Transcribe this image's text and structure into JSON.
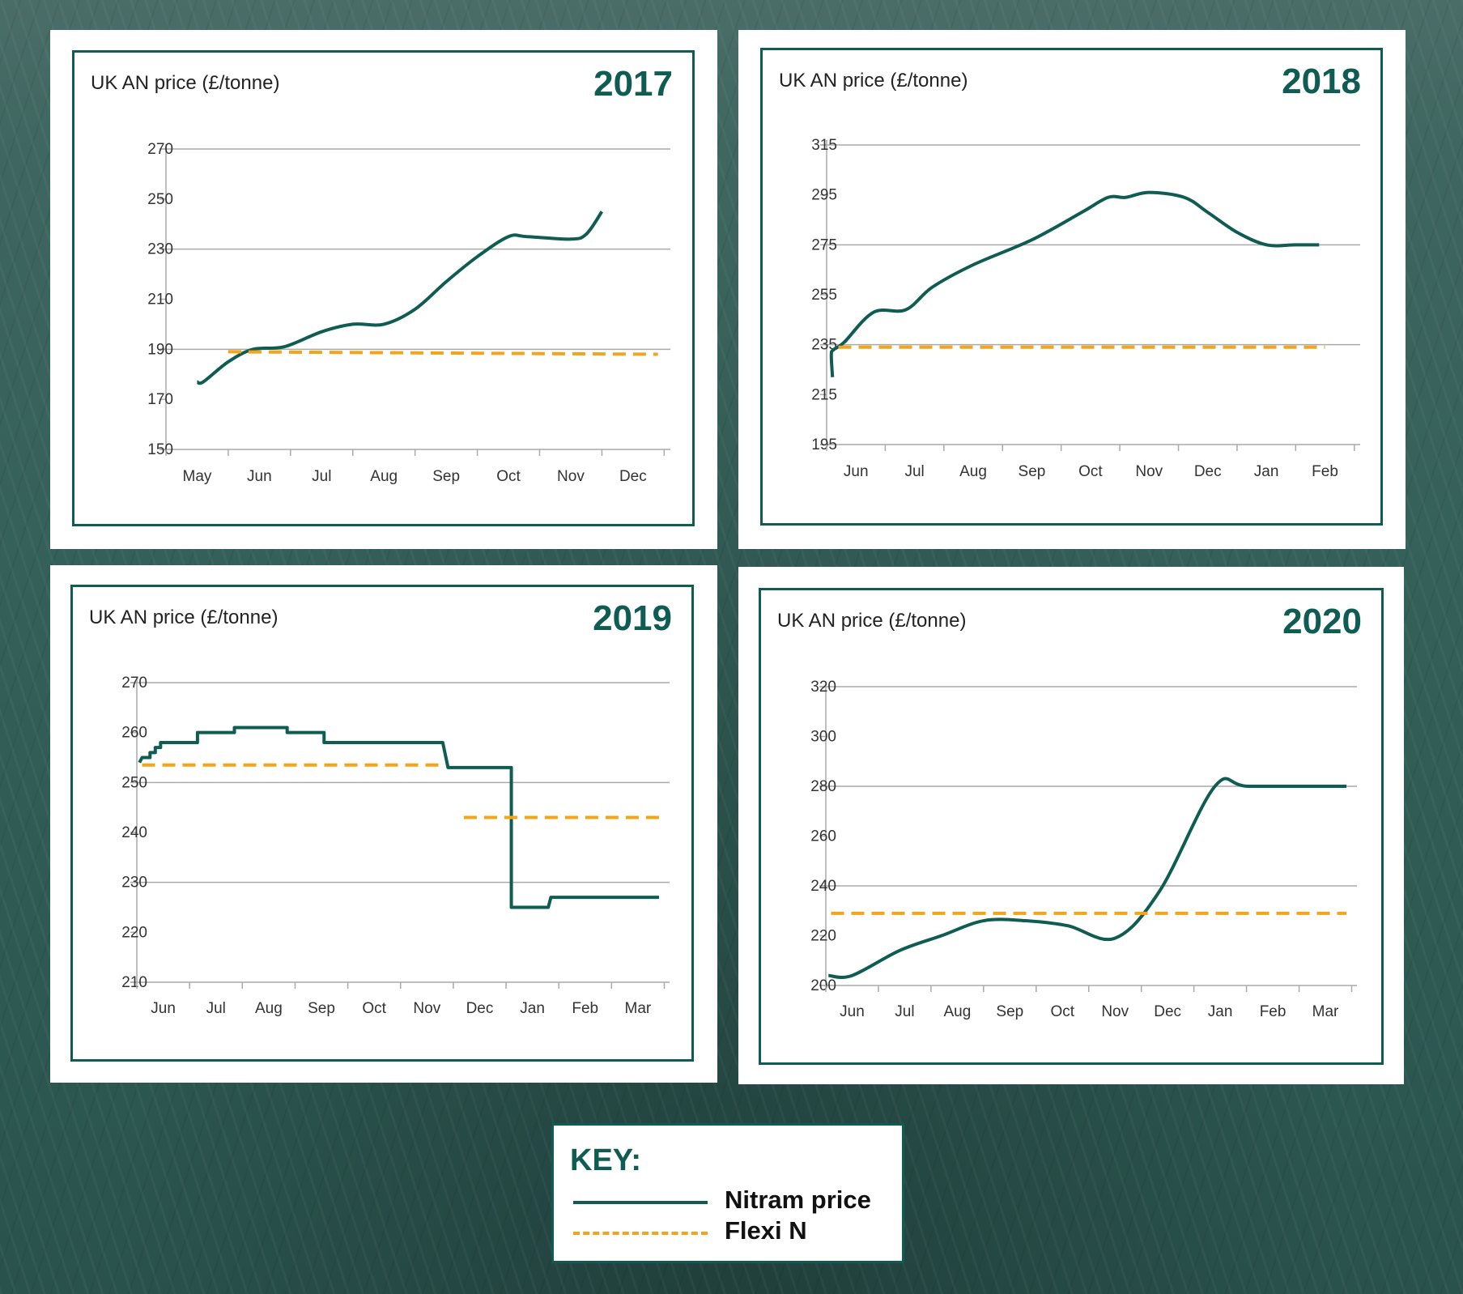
{
  "key": {
    "title": "KEY:",
    "nitram_label": "Nitram price",
    "flexi_label": "Flexi N"
  },
  "colors": {
    "nitram": "#0f5c52",
    "flexi": "#f2a51a",
    "grid": "#aaaaaa",
    "frame": "#0f5c52"
  },
  "chart_data": [
    {
      "type": "line",
      "title": "UK AN price (£/tonne)",
      "year": "2017",
      "categories": [
        "May",
        "Jun",
        "Jul",
        "Aug",
        "Sep",
        "Oct",
        "Nov",
        "Dec"
      ],
      "yticks": [
        270,
        250,
        230,
        210,
        190,
        170,
        150
      ],
      "ylim": [
        150,
        270
      ],
      "grid_values": [
        270,
        230,
        190
      ],
      "series": [
        {
          "name": "Nitram price",
          "style": "solid",
          "x": [
            0,
            0.1,
            0.5,
            0.9,
            1.4,
            2.0,
            2.5,
            3.0,
            3.5,
            4.0,
            4.5,
            5.0,
            5.3,
            6.0,
            6.25,
            6.5
          ],
          "y": [
            177,
            177,
            185,
            190,
            191,
            197,
            200,
            200,
            206,
            217,
            227,
            235,
            235,
            234,
            236,
            245
          ]
        },
        {
          "name": "Flexi N",
          "style": "dashed",
          "x": [
            0.5,
            7.4
          ],
          "y": [
            189,
            188
          ]
        }
      ]
    },
    {
      "type": "line",
      "title": "UK AN price (£/tonne)",
      "year": "2018",
      "categories": [
        "Jun",
        "Jul",
        "Aug",
        "Sep",
        "Oct",
        "Nov",
        "Dec",
        "Jan",
        "Feb"
      ],
      "yticks": [
        315,
        295,
        275,
        255,
        235,
        215,
        195
      ],
      "ylim": [
        195,
        315
      ],
      "grid_values": [
        315,
        275,
        235
      ],
      "series": [
        {
          "name": "Nitram price",
          "style": "solid",
          "x": [
            -0.4,
            -0.42,
            -0.38,
            -0.2,
            0.3,
            0.85,
            1.3,
            2.0,
            3.0,
            3.85,
            4.3,
            4.6,
            5.0,
            5.6,
            6.0,
            6.5,
            7.0,
            7.5,
            7.9
          ],
          "y": [
            222,
            231,
            233,
            236,
            248,
            249,
            258,
            267,
            277,
            288,
            294,
            294,
            296,
            294,
            288,
            280,
            275,
            275,
            275
          ]
        },
        {
          "name": "Flexi N",
          "style": "dashed",
          "x": [
            -0.3,
            8.0
          ],
          "y": [
            234,
            234
          ]
        }
      ]
    },
    {
      "type": "line",
      "title": "UK AN price (£/tonne)",
      "year": "2019",
      "categories": [
        "Jun",
        "Jul",
        "Aug",
        "Sep",
        "Oct",
        "Nov",
        "Dec",
        "Jan",
        "Feb",
        "Mar"
      ],
      "yticks": [
        270,
        260,
        250,
        240,
        230,
        220,
        210
      ],
      "ylim": [
        210,
        270
      ],
      "grid_values": [
        270,
        250,
        230
      ],
      "series": [
        {
          "name": "Nitram price",
          "style": "solid",
          "x": [
            -0.45,
            -0.4,
            -0.25,
            -0.25,
            -0.15,
            -0.15,
            -0.05,
            -0.05,
            0.65,
            0.65,
            1.35,
            1.35,
            2.35,
            2.35,
            3.05,
            3.05,
            5.3,
            5.4,
            6.6,
            6.6,
            7.3,
            7.35,
            9.4
          ],
          "y": [
            254,
            255,
            255,
            256,
            256,
            257,
            257,
            258,
            258,
            260,
            260,
            261,
            261,
            260,
            260,
            258,
            258,
            253,
            253,
            225,
            225,
            227,
            227
          ]
        },
        {
          "name": "Flexi N",
          "style": "dashed",
          "x": [
            -0.4,
            5.3
          ],
          "y": [
            253.5,
            253.5
          ]
        },
        {
          "name": "Flexi N",
          "style": "dashed",
          "x": [
            5.7,
            9.4
          ],
          "y": [
            243,
            243
          ]
        }
      ]
    },
    {
      "type": "line",
      "title": "UK AN price (£/tonne)",
      "year": "2020",
      "categories": [
        "Jun",
        "Jul",
        "Aug",
        "Sep",
        "Oct",
        "Nov",
        "Dec",
        "Jan",
        "Feb",
        "Mar"
      ],
      "yticks": [
        320,
        300,
        280,
        260,
        240,
        220,
        200
      ],
      "ylim": [
        200,
        320
      ],
      "grid_values": [
        320,
        280,
        240
      ],
      "series": [
        {
          "name": "Nitram price",
          "style": "solid",
          "x": [
            -0.45,
            0,
            0.9,
            1.7,
            2.5,
            3.3,
            4.1,
            5.0,
            5.85,
            6.9,
            7.55,
            9.4
          ],
          "y": [
            204,
            204,
            214,
            220,
            226,
            226,
            224,
            219,
            238,
            280,
            280,
            280
          ]
        },
        {
          "name": "Flexi N",
          "style": "dashed",
          "x": [
            -0.4,
            9.4
          ],
          "y": [
            229,
            229
          ]
        }
      ]
    }
  ]
}
